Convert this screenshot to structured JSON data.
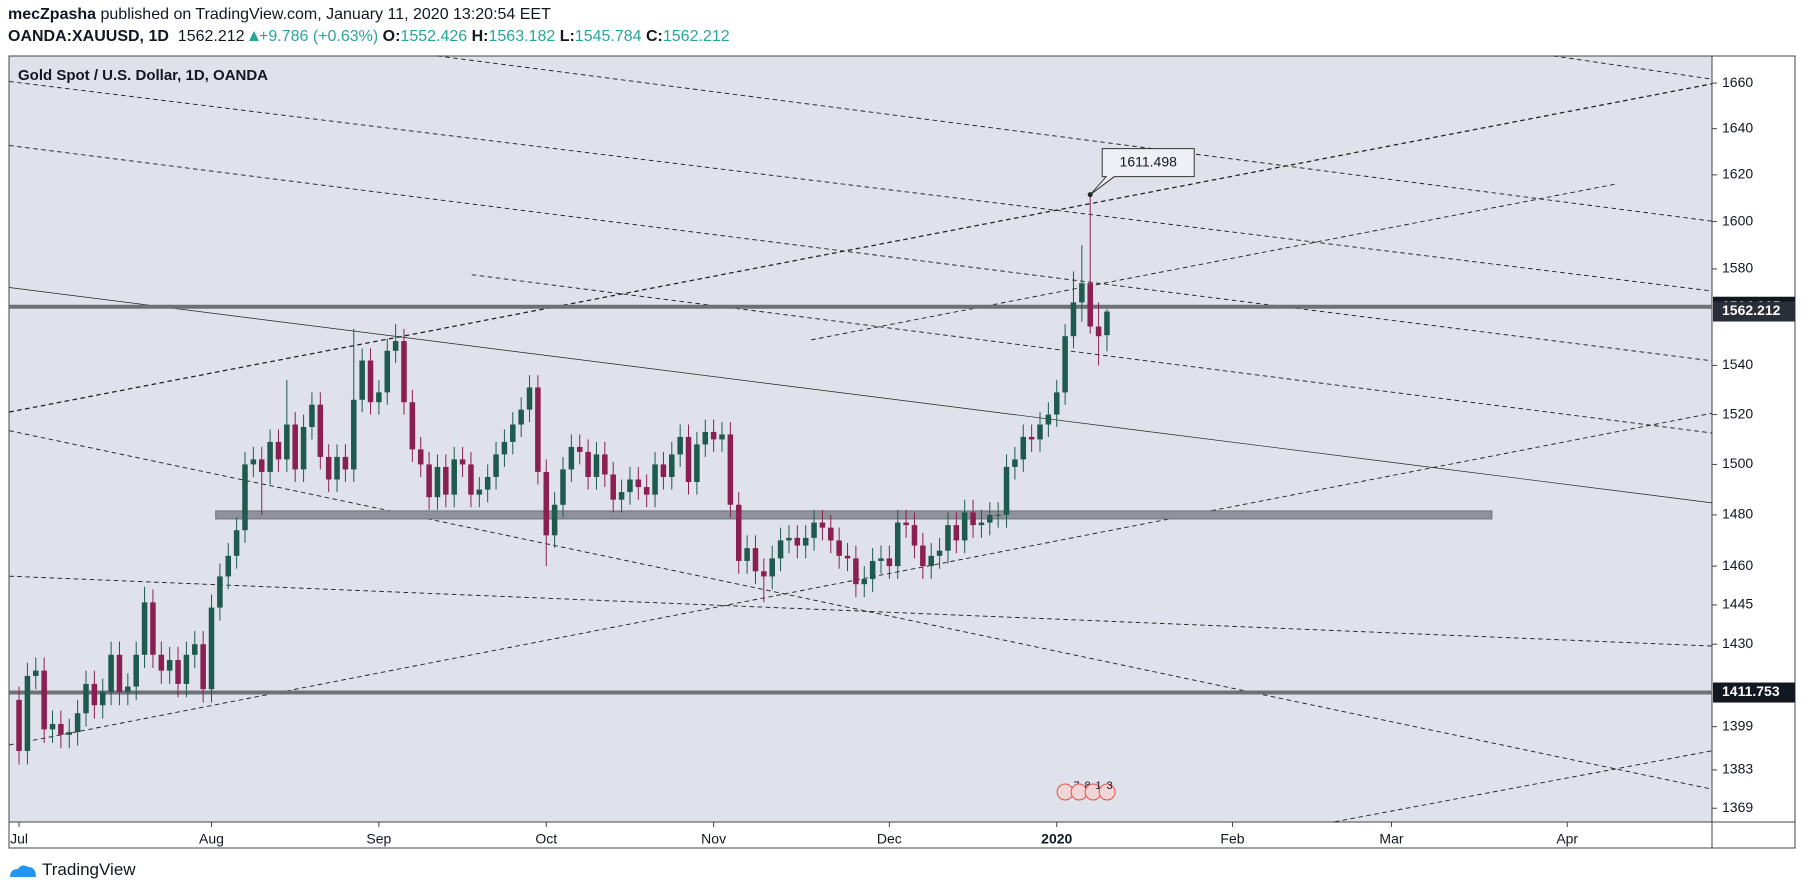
{
  "header": {
    "author": "mecZpasha",
    "published": "published on TradingView.com, January 11, 2020 13:20:54 EET",
    "symbol": "OANDA:XAUUSD, 1D",
    "change": "+9.786 (+0.63%)",
    "o_label": "O:",
    "h_label": "H:",
    "l_label": "L:",
    "c_label": "C:"
  },
  "footer": "TradingView",
  "chart_data": {
    "type": "candlestick",
    "title": "Gold Spot / U.S. Dollar, 1D, OANDA",
    "up_color": "#1f5a4e",
    "down_color": "#8c1f52",
    "log_scale": true,
    "grid": false,
    "ylim": [
      1364,
      1672
    ],
    "yticks": [
      1660,
      1640,
      1620,
      1600,
      1580,
      1540,
      1520,
      1500,
      1480,
      1460,
      1445,
      1430,
      1399,
      1383,
      1369
    ],
    "xlim": [
      -1.2,
      202.3
    ],
    "xticks": [
      {
        "value": 0,
        "label": "Jul"
      },
      {
        "value": 23,
        "label": "Aug"
      },
      {
        "value": 43,
        "label": "Sep"
      },
      {
        "value": 63,
        "label": "Oct"
      },
      {
        "value": 83,
        "label": "Nov"
      },
      {
        "value": 104,
        "label": "Dec"
      },
      {
        "value": 124,
        "label": "2020"
      },
      {
        "value": 145,
        "label": "Feb"
      },
      {
        "value": 164,
        "label": "Mar"
      },
      {
        "value": 185,
        "label": "Apr"
      }
    ],
    "open": [
      1409,
      1390,
      1418,
      1420,
      1398,
      1400,
      1396,
      1397,
      1404,
      1415,
      1407,
      1412,
      1426,
      1412,
      1414,
      1426,
      1446,
      1426,
      1420,
      1424,
      1415,
      1426,
      1430,
      1413,
      1444,
      1456,
      1464,
      1474,
      1500,
      1502,
      1497,
      1509,
      1502,
      1516,
      1498,
      1515,
      1524,
      1503,
      1494,
      1503,
      1498,
      1526,
      1542,
      1525,
      1529,
      1546,
      1550,
      1525,
      1506,
      1500,
      1487,
      1499,
      1488,
      1502,
      1500,
      1488,
      1490,
      1495,
      1504,
      1509,
      1516,
      1522,
      1531,
      1497,
      1472,
      1484,
      1498,
      1507,
      1505,
      1495,
      1504,
      1496,
      1486,
      1489,
      1494,
      1491,
      1488,
      1500,
      1495,
      1504,
      1511,
      1493,
      1508,
      1513,
      1510,
      1512,
      1484,
      1462,
      1467,
      1458,
      1456,
      1463,
      1470,
      1471,
      1468,
      1471,
      1477,
      1475,
      1470,
      1464,
      1463,
      1453,
      1455,
      1462,
      1463,
      1460,
      1477,
      1476,
      1468,
      1460,
      1464,
      1466,
      1476,
      1470,
      1481,
      1476,
      1477,
      1480,
      1480,
      1499,
      1502,
      1511,
      1510,
      1516,
      1520,
      1529,
      1552,
      1566,
      1574,
      1556,
      1552.426
    ],
    "high": [
      1414,
      1423,
      1425,
      1425,
      1405,
      1405,
      1402,
      1409,
      1420,
      1420,
      1417,
      1431,
      1431,
      1419,
      1431,
      1452,
      1451,
      1431,
      1429,
      1429,
      1431,
      1435,
      1435,
      1449,
      1461,
      1469,
      1479,
      1505,
      1507,
      1507,
      1514,
      1514,
      1534,
      1521,
      1520,
      1529,
      1529,
      1508,
      1508,
      1508,
      1555,
      1547,
      1547,
      1534,
      1551,
      1557,
      1555,
      1530,
      1511,
      1505,
      1504,
      1504,
      1507,
      1507,
      1505,
      1495,
      1500,
      1509,
      1514,
      1521,
      1527,
      1536,
      1536,
      1502,
      1489,
      1503,
      1512,
      1512,
      1510,
      1509,
      1509,
      1501,
      1494,
      1499,
      1499,
      1496,
      1505,
      1505,
      1509,
      1516,
      1516,
      1513,
      1518,
      1518,
      1517,
      1517,
      1489,
      1472,
      1472,
      1463,
      1468,
      1475,
      1476,
      1476,
      1476,
      1482,
      1482,
      1480,
      1475,
      1469,
      1468,
      1460,
      1467,
      1468,
      1468,
      1482,
      1482,
      1481,
      1473,
      1469,
      1471,
      1481,
      1481,
      1486,
      1486,
      1482,
      1485,
      1485,
      1504,
      1507,
      1516,
      1516,
      1521,
      1525,
      1534,
      1557,
      1579,
      1590,
      1611.498,
      1566,
      1563.182
    ],
    "low": [
      1385,
      1385,
      1413,
      1393,
      1393,
      1391,
      1391,
      1392,
      1399,
      1402,
      1402,
      1407,
      1407,
      1407,
      1409,
      1421,
      1421,
      1415,
      1415,
      1410,
      1410,
      1421,
      1408,
      1408,
      1439,
      1451,
      1459,
      1469,
      1495,
      1480,
      1492,
      1497,
      1497,
      1493,
      1493,
      1510,
      1498,
      1489,
      1489,
      1493,
      1493,
      1521,
      1520,
      1520,
      1524,
      1541,
      1520,
      1501,
      1495,
      1482,
      1482,
      1483,
      1483,
      1495,
      1483,
      1483,
      1485,
      1490,
      1499,
      1504,
      1511,
      1517,
      1492,
      1460,
      1467,
      1479,
      1493,
      1500,
      1490,
      1490,
      1491,
      1481,
      1481,
      1484,
      1486,
      1483,
      1483,
      1490,
      1490,
      1499,
      1488,
      1488,
      1503,
      1505,
      1505,
      1479,
      1457,
      1457,
      1453,
      1446,
      1451,
      1458,
      1465,
      1463,
      1463,
      1466,
      1470,
      1465,
      1459,
      1458,
      1448,
      1448,
      1450,
      1457,
      1455,
      1455,
      1471,
      1463,
      1455,
      1455,
      1459,
      1461,
      1465,
      1465,
      1471,
      1471,
      1472,
      1475,
      1475,
      1494,
      1497,
      1505,
      1505,
      1511,
      1515,
      1524,
      1547,
      1558,
      1553,
      1540,
      1545.784
    ],
    "close": [
      1390,
      1418,
      1420,
      1398,
      1400,
      1396,
      1397,
      1404,
      1415,
      1407,
      1412,
      1426,
      1412,
      1414,
      1426,
      1446,
      1426,
      1420,
      1424,
      1415,
      1426,
      1430,
      1413,
      1444,
      1456,
      1464,
      1474,
      1500,
      1502,
      1497,
      1509,
      1502,
      1516,
      1498,
      1515,
      1524,
      1503,
      1494,
      1503,
      1498,
      1526,
      1542,
      1525,
      1529,
      1546,
      1550,
      1525,
      1506,
      1500,
      1487,
      1499,
      1488,
      1502,
      1500,
      1488,
      1490,
      1495,
      1504,
      1509,
      1516,
      1522,
      1531,
      1497,
      1472,
      1484,
      1498,
      1507,
      1505,
      1495,
      1504,
      1496,
      1486,
      1489,
      1494,
      1491,
      1488,
      1500,
      1495,
      1504,
      1511,
      1493,
      1508,
      1513,
      1510,
      1512,
      1484,
      1462,
      1467,
      1458,
      1456,
      1463,
      1470,
      1471,
      1468,
      1471,
      1477,
      1475,
      1470,
      1464,
      1463,
      1453,
      1455,
      1462,
      1463,
      1460,
      1477,
      1476,
      1468,
      1460,
      1464,
      1466,
      1476,
      1470,
      1481,
      1476,
      1477,
      1480,
      1480,
      1499,
      1502,
      1511,
      1510,
      1516,
      1520,
      1529,
      1552,
      1566,
      1574,
      1556,
      1552,
      1562.212
    ],
    "hlines": [
      1564.205,
      1411.753
    ],
    "zone": 1480,
    "events": [
      "7",
      "8",
      "1",
      "3"
    ]
  }
}
